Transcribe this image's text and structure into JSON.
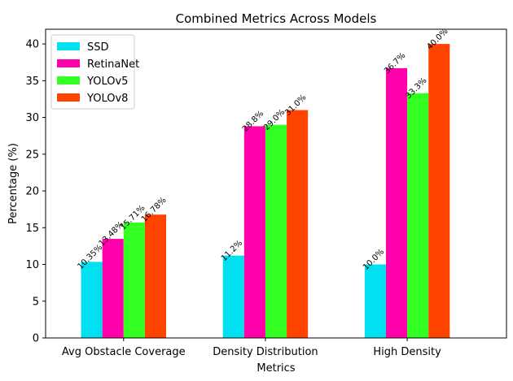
{
  "chart_data": {
    "type": "bar",
    "title": "Combined Metrics Across Models",
    "xlabel": "Metrics",
    "ylabel": "Percentage (%)",
    "categories": [
      "Avg Obstacle Coverage",
      "Density Distribution",
      "High Density"
    ],
    "ylim": [
      0,
      42
    ],
    "yticks": [
      0,
      5,
      10,
      15,
      20,
      25,
      30,
      35,
      40
    ],
    "grid": false,
    "legend_position": "top-left",
    "series": [
      {
        "name": "SSD",
        "color": "#00e0f0",
        "values": [
          10.35,
          11.2,
          10.0
        ],
        "labels": [
          "10.35%",
          "11.2%",
          "10.0%"
        ]
      },
      {
        "name": "RetinaNet",
        "color": "#ff00aa",
        "values": [
          13.48,
          28.8,
          36.7
        ],
        "labels": [
          "13.48%",
          "28.8%",
          "36.7%"
        ]
      },
      {
        "name": "YOLOv5",
        "color": "#33ff22",
        "values": [
          15.71,
          29.0,
          33.3
        ],
        "labels": [
          "15.71%",
          "29.0%",
          "33.3%"
        ]
      },
      {
        "name": "YOLOv8",
        "color": "#ff4400",
        "values": [
          16.78,
          31.0,
          40.0
        ],
        "labels": [
          "16.78%",
          "31.0%",
          "40.0%"
        ]
      }
    ]
  }
}
